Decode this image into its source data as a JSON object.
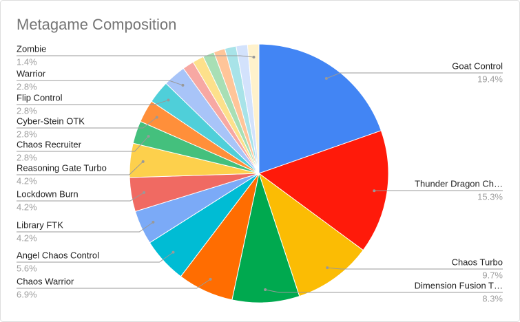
{
  "chart_data": {
    "type": "pie",
    "title": "Metagame Composition",
    "categories": [
      "Goat Control",
      "Thunder Dragon Ch…",
      "Chaos Turbo",
      "Dimension Fusion T…",
      "Chaos Warrior",
      "Angel Chaos Control",
      "Library FTK",
      "Lockdown Burn",
      "Reasoning Gate Turbo",
      "Chaos Recruiter",
      "Cyber-Stein OTK",
      "Flip Control",
      "Warrior",
      null,
      null,
      null,
      null,
      null,
      null,
      "Zombie"
    ],
    "values": [
      19.4,
      15.3,
      9.7,
      8.3,
      6.9,
      5.6,
      4.2,
      4.2,
      4.2,
      2.8,
      2.8,
      2.8,
      2.8,
      1.4,
      1.4,
      1.4,
      1.4,
      1.4,
      1.4,
      1.4
    ],
    "value_labels": [
      "19.4%",
      "15.3%",
      "9.7%",
      "8.3%",
      "6.9%",
      "5.6%",
      "4.2%",
      "4.2%",
      "4.2%",
      "2.8%",
      "2.8%",
      "2.8%",
      "2.8%",
      null,
      null,
      null,
      null,
      null,
      null,
      "1.4%"
    ],
    "colors": [
      "#4285f4",
      "#ff1a0a",
      "#fbbc04",
      "#00a94f",
      "#ff6d01",
      "#00bcd4",
      "#7baaf7",
      "#f06a62",
      "#fdd04c",
      "#44c07d",
      "#ff8f3a",
      "#4fcfd9",
      "#a8c4f8",
      "#f7a8a3",
      "#fde08b",
      "#a8dfb5",
      "#ffc599",
      "#a8e3e8",
      "#d3e2fc",
      "#fff2cc"
    ]
  }
}
